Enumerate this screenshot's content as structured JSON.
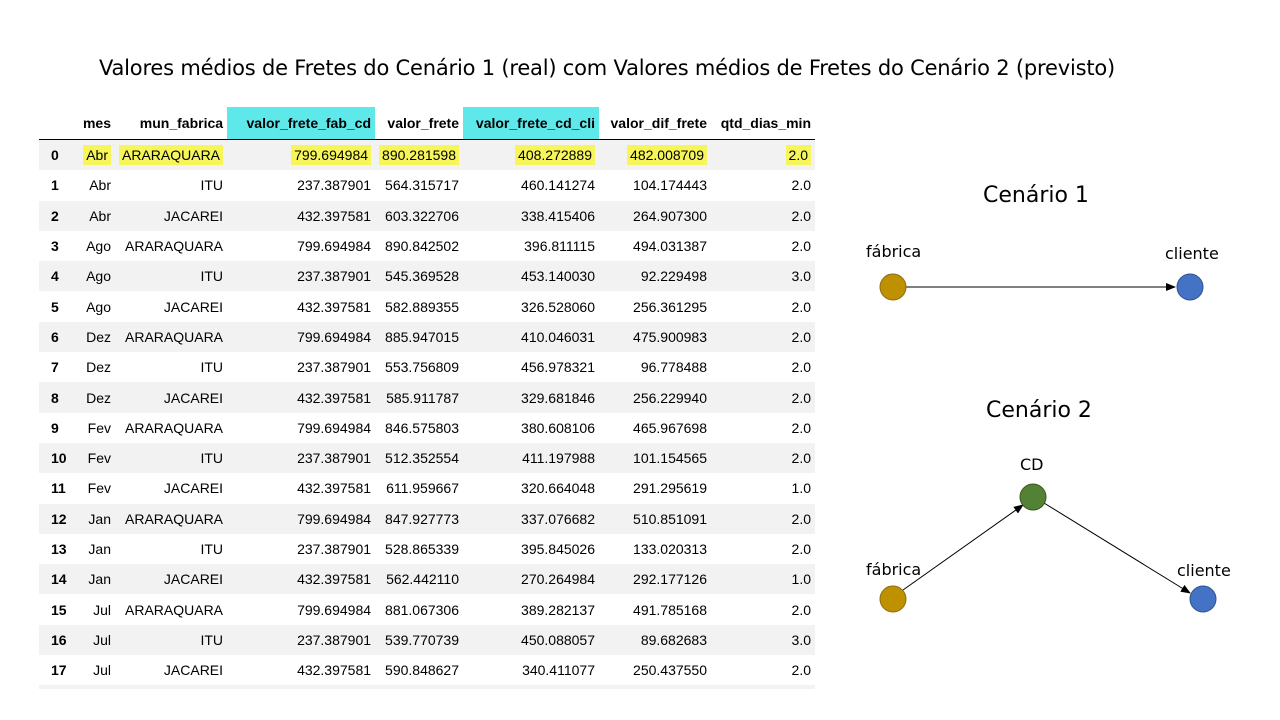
{
  "title": "Valores médios de Fretes do Cenário 1 (real) com Valores médios de Fretes do Cenário 2 (previsto)",
  "table": {
    "columns": [
      "",
      "mes",
      "mun_fabrica",
      "valor_frete_fab_cd",
      "valor_frete",
      "valor_frete_cd_cli",
      "valor_dif_frete",
      "qtd_dias_min"
    ],
    "highlighted_columns": [
      "valor_frete_fab_cd",
      "valor_frete_cd_cli"
    ],
    "highlighted_row": 0,
    "rows": [
      [
        "0",
        "Abr",
        "ARARAQUARA",
        "799.694984",
        "890.281598",
        "408.272889",
        "482.008709",
        "2.0"
      ],
      [
        "1",
        "Abr",
        "ITU",
        "237.387901",
        "564.315717",
        "460.141274",
        "104.174443",
        "2.0"
      ],
      [
        "2",
        "Abr",
        "JACAREI",
        "432.397581",
        "603.322706",
        "338.415406",
        "264.907300",
        "2.0"
      ],
      [
        "3",
        "Ago",
        "ARARAQUARA",
        "799.694984",
        "890.842502",
        "396.811115",
        "494.031387",
        "2.0"
      ],
      [
        "4",
        "Ago",
        "ITU",
        "237.387901",
        "545.369528",
        "453.140030",
        "92.229498",
        "3.0"
      ],
      [
        "5",
        "Ago",
        "JACAREI",
        "432.397581",
        "582.889355",
        "326.528060",
        "256.361295",
        "2.0"
      ],
      [
        "6",
        "Dez",
        "ARARAQUARA",
        "799.694984",
        "885.947015",
        "410.046031",
        "475.900983",
        "2.0"
      ],
      [
        "7",
        "Dez",
        "ITU",
        "237.387901",
        "553.756809",
        "456.978321",
        "96.778488",
        "2.0"
      ],
      [
        "8",
        "Dez",
        "JACAREI",
        "432.397581",
        "585.911787",
        "329.681846",
        "256.229940",
        "2.0"
      ],
      [
        "9",
        "Fev",
        "ARARAQUARA",
        "799.694984",
        "846.575803",
        "380.608106",
        "465.967698",
        "2.0"
      ],
      [
        "10",
        "Fev",
        "ITU",
        "237.387901",
        "512.352554",
        "411.197988",
        "101.154565",
        "2.0"
      ],
      [
        "11",
        "Fev",
        "JACAREI",
        "432.397581",
        "611.959667",
        "320.664048",
        "291.295619",
        "1.0"
      ],
      [
        "12",
        "Jan",
        "ARARAQUARA",
        "799.694984",
        "847.927773",
        "337.076682",
        "510.851091",
        "2.0"
      ],
      [
        "13",
        "Jan",
        "ITU",
        "237.387901",
        "528.865339",
        "395.845026",
        "133.020313",
        "2.0"
      ],
      [
        "14",
        "Jan",
        "JACAREI",
        "432.397581",
        "562.442110",
        "270.264984",
        "292.177126",
        "1.0"
      ],
      [
        "15",
        "Jul",
        "ARARAQUARA",
        "799.694984",
        "881.067306",
        "389.282137",
        "491.785168",
        "2.0"
      ],
      [
        "16",
        "Jul",
        "ITU",
        "237.387901",
        "539.770739",
        "450.088057",
        "89.682683",
        "3.0"
      ],
      [
        "17",
        "Jul",
        "JACAREI",
        "432.397581",
        "590.848627",
        "340.411077",
        "250.437550",
        "2.0"
      ]
    ]
  },
  "colors": {
    "column_highlight": "#5ee8ea",
    "row_highlight": "#f6f55a",
    "factory_node": "#bf9000",
    "client_node": "#4472c4",
    "cd_node": "#548235"
  },
  "scenario1": {
    "title": "Cenário 1",
    "factory_label": "fábrica",
    "client_label": "cliente"
  },
  "scenario2": {
    "title": "Cenário 2",
    "factory_label": "fábrica",
    "cd_label": "CD",
    "client_label": "cliente"
  }
}
